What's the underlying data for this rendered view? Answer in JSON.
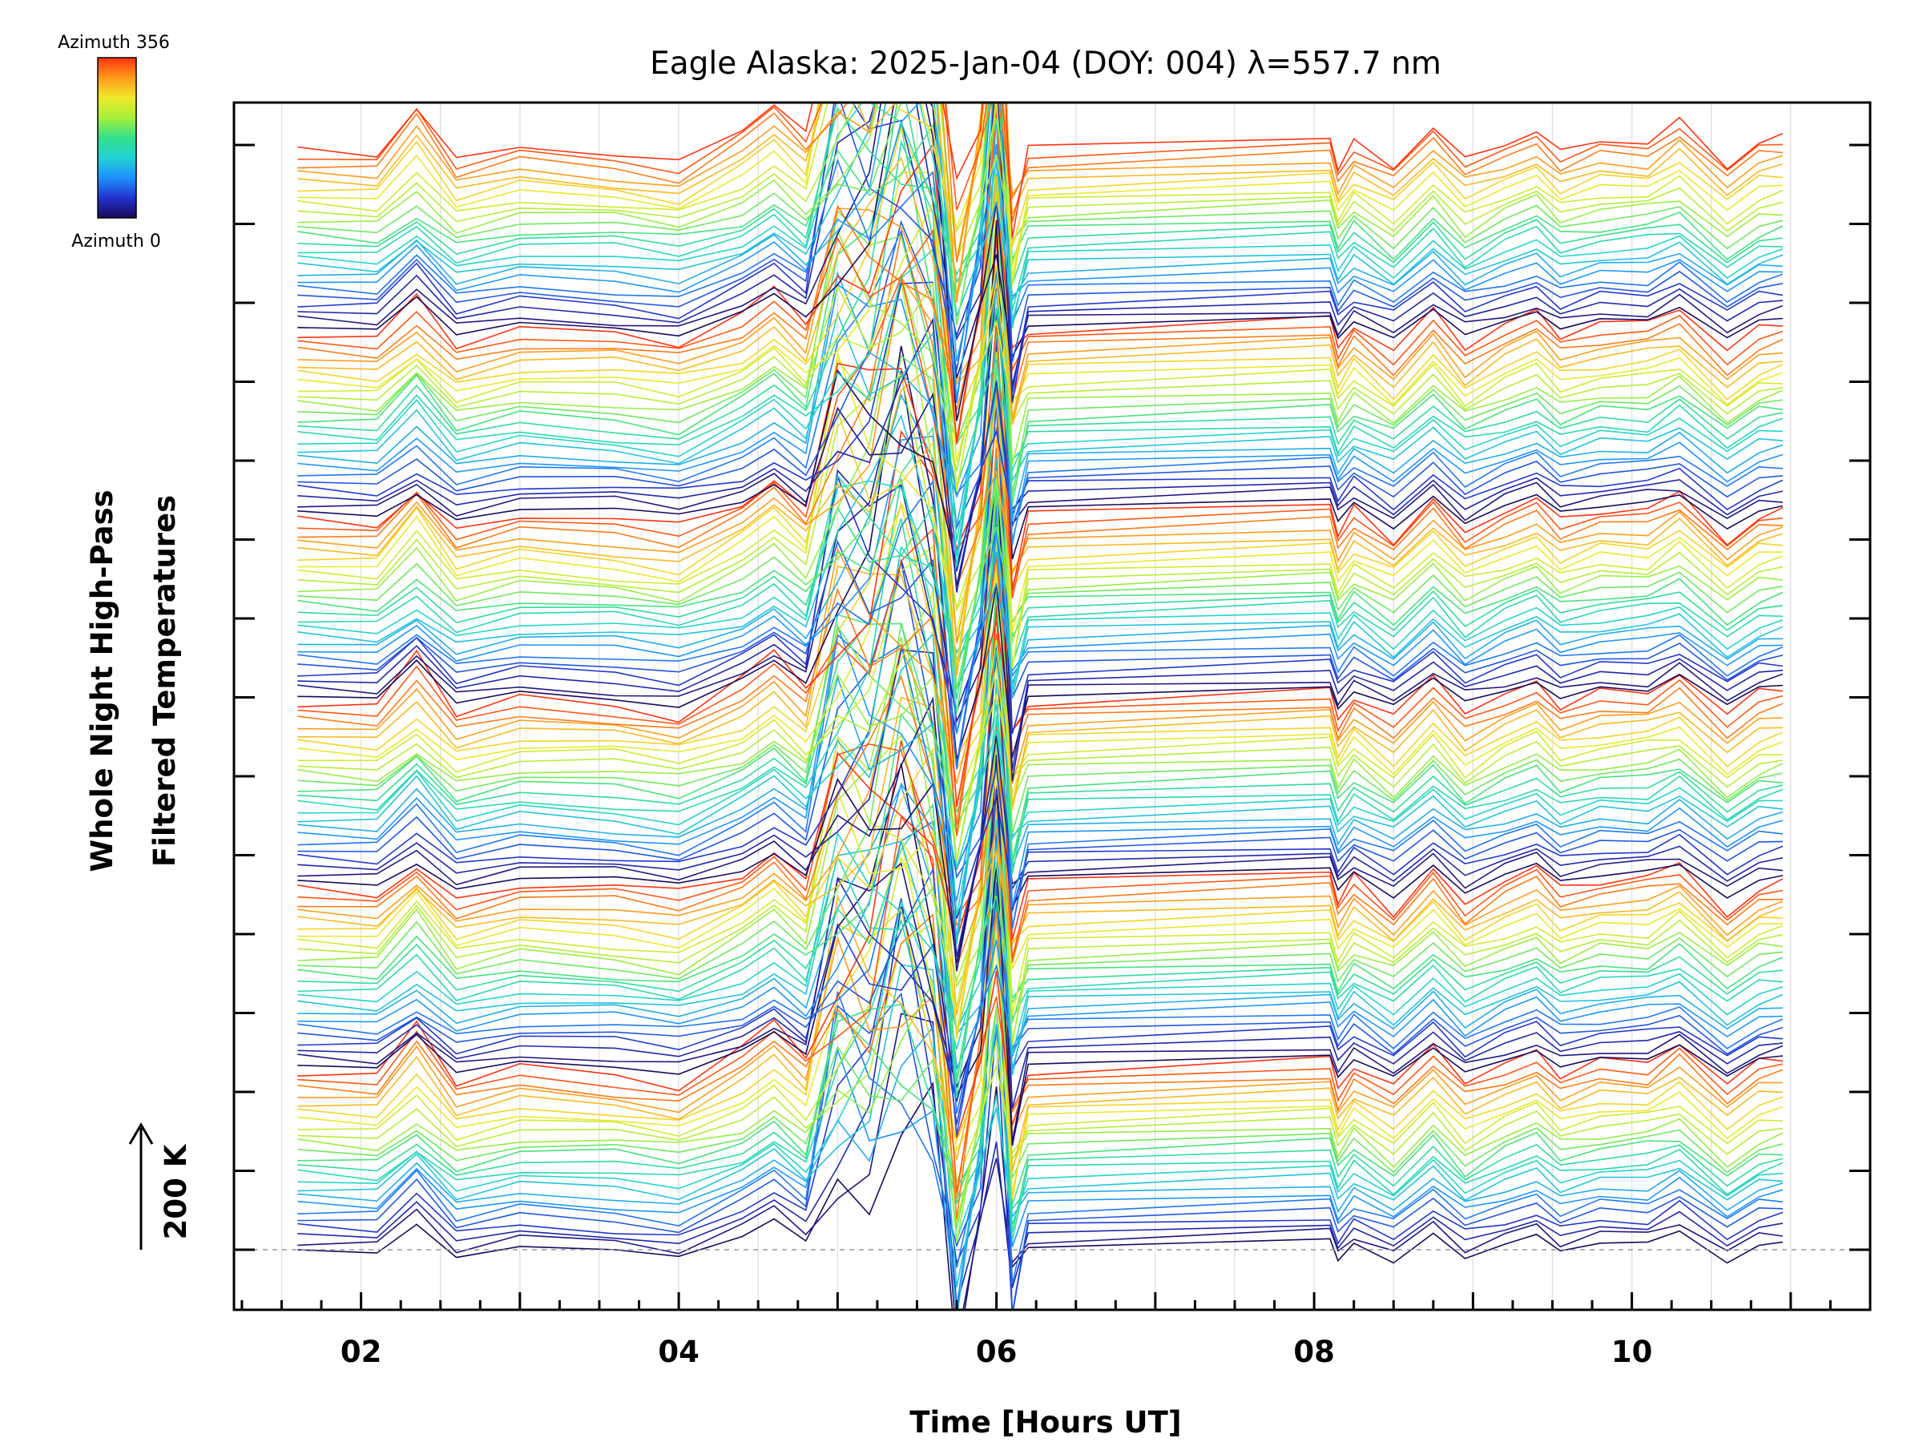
{
  "chart_data": {
    "type": "line",
    "title": "Eagle Alaska: 2025-Jan-04 (DOY: 004) λ=557.7 nm",
    "xlabel": "Time [Hours UT]",
    "ylabel_line1": "Whole Night High-Pass",
    "ylabel_line2": "Filtered Temperatures",
    "scale_label": "200 K",
    "xlim": [
      1.2,
      11.5
    ],
    "x_ticks": [
      "02",
      "04",
      "06",
      "08",
      "10"
    ],
    "x_tick_values": [
      2,
      4,
      6,
      8,
      10
    ],
    "colorbar": {
      "top_label": "Azimuth 356",
      "bottom_label": "Azimuth 0",
      "colormap": "rainbow",
      "colors": [
        "#1a0a5c",
        "#2233cc",
        "#1e90ff",
        "#22d3d3",
        "#33e08a",
        "#a6f03a",
        "#f0e82a",
        "#ff9a1a",
        "#ff3311"
      ]
    },
    "grid": true,
    "legend": "none",
    "series_count": 144,
    "time": [
      1.6,
      2.1,
      2.35,
      2.6,
      3.0,
      3.6,
      4.0,
      4.4,
      4.6,
      4.8,
      5.0,
      5.2,
      5.4,
      5.6,
      5.75,
      5.9,
      6.0,
      6.1,
      6.2,
      8.1,
      8.15,
      8.25,
      8.5,
      8.75,
      8.95,
      9.2,
      9.4,
      9.55,
      9.8,
      10.1,
      10.3,
      10.6,
      10.8,
      10.95
    ],
    "profile_a": [
      0,
      -5,
      80,
      -15,
      10,
      -10,
      -25,
      40,
      80,
      30,
      140,
      120,
      220,
      140,
      -80,
      40,
      240,
      -60,
      0,
      20,
      -30,
      10,
      -20,
      40,
      -10,
      10,
      30,
      -5,
      20,
      10,
      50,
      -20,
      20,
      25
    ],
    "profile_b": [
      0,
      -10,
      35,
      -20,
      5,
      10,
      -5,
      20,
      60,
      10,
      90,
      100,
      150,
      130,
      -60,
      20,
      180,
      -40,
      10,
      30,
      -20,
      20,
      -40,
      35,
      -30,
      15,
      40,
      0,
      10,
      25,
      35,
      -40,
      0,
      10
    ]
  }
}
